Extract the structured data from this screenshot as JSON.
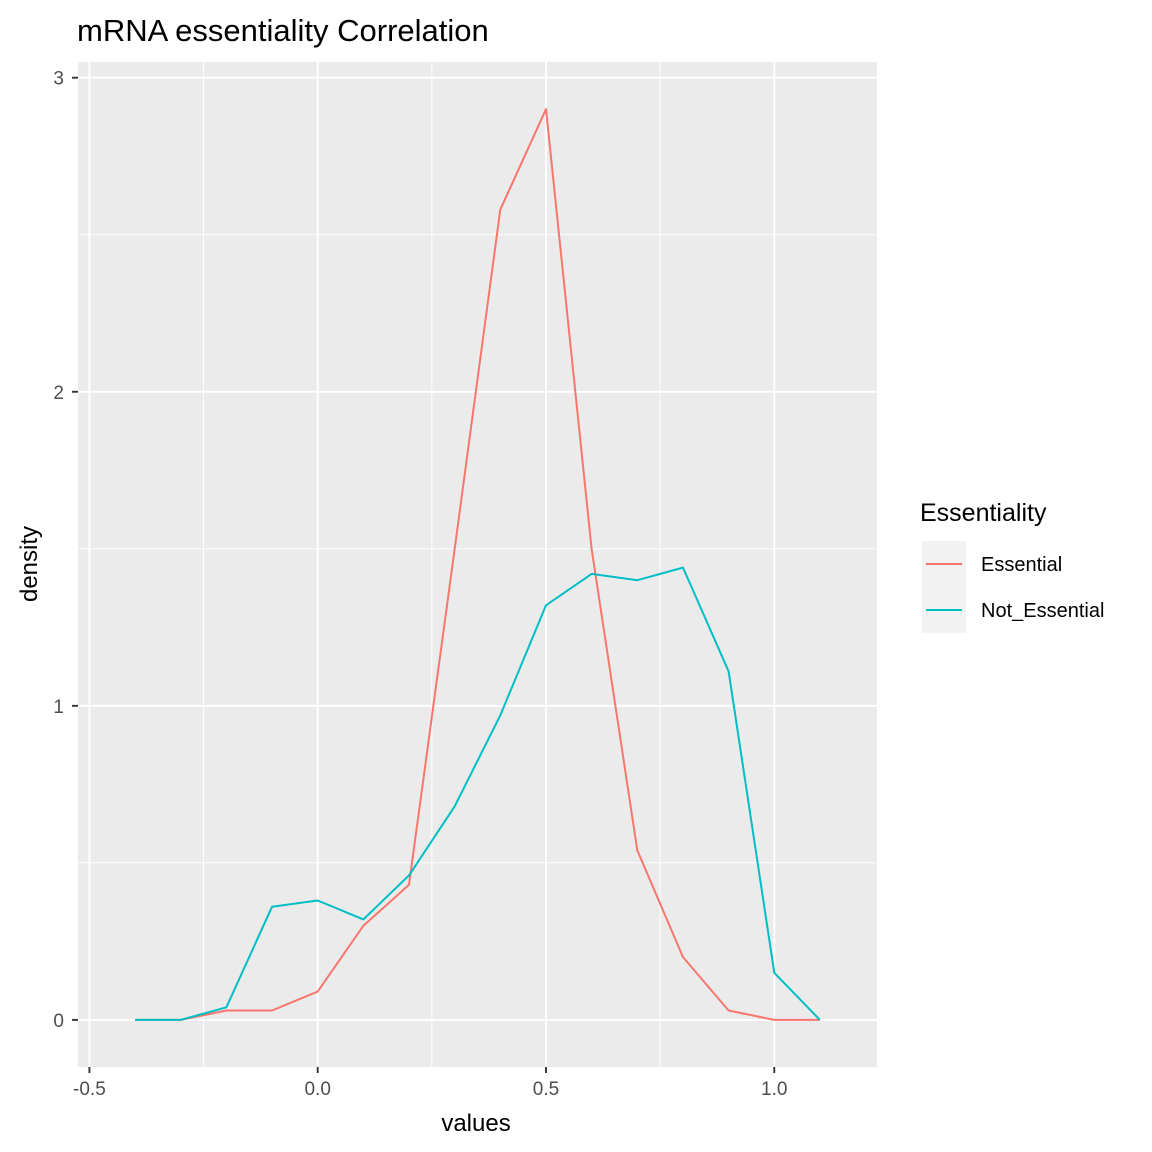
{
  "chart_data": {
    "type": "line",
    "title": "mRNA essentiality Correlation",
    "xlabel": "values",
    "ylabel": "density",
    "xlim": [
      -0.525,
      1.225
    ],
    "ylim": [
      -0.15,
      3.05
    ],
    "x_ticks": [
      -0.5,
      0.0,
      0.5,
      1.0
    ],
    "x_tick_labels": [
      "-0.5",
      "0.0",
      "0.5",
      "1.0"
    ],
    "y_ticks": [
      0,
      1,
      2,
      3
    ],
    "y_tick_labels": [
      "0",
      "1",
      "2",
      "3"
    ],
    "grid": true,
    "legend_position": "right",
    "legend": {
      "title": "Essentiality"
    },
    "panel_background": "#ebebeb",
    "grid_color": "#ffffff",
    "series": [
      {
        "name": "Essential",
        "color": "#f8766d",
        "x": [
          -0.4,
          -0.3,
          -0.2,
          -0.1,
          0.0,
          0.1,
          0.2,
          0.3,
          0.4,
          0.5,
          0.6,
          0.7,
          0.8,
          0.9,
          1.0,
          1.1
        ],
        "values": [
          0.0,
          0.0,
          0.03,
          0.03,
          0.09,
          0.3,
          0.43,
          1.5,
          2.58,
          2.9,
          1.5,
          0.54,
          0.2,
          0.03,
          0.0,
          0.0
        ]
      },
      {
        "name": "Not_Essential",
        "color": "#00bfc4",
        "x": [
          -0.4,
          -0.3,
          -0.2,
          -0.1,
          0.0,
          0.1,
          0.2,
          0.3,
          0.4,
          0.5,
          0.6,
          0.7,
          0.8,
          0.9,
          1.0,
          1.1
        ],
        "values": [
          0.0,
          0.0,
          0.04,
          0.36,
          0.38,
          0.32,
          0.46,
          0.68,
          0.97,
          1.32,
          1.42,
          1.4,
          1.44,
          1.11,
          0.15,
          0.0
        ]
      }
    ]
  }
}
